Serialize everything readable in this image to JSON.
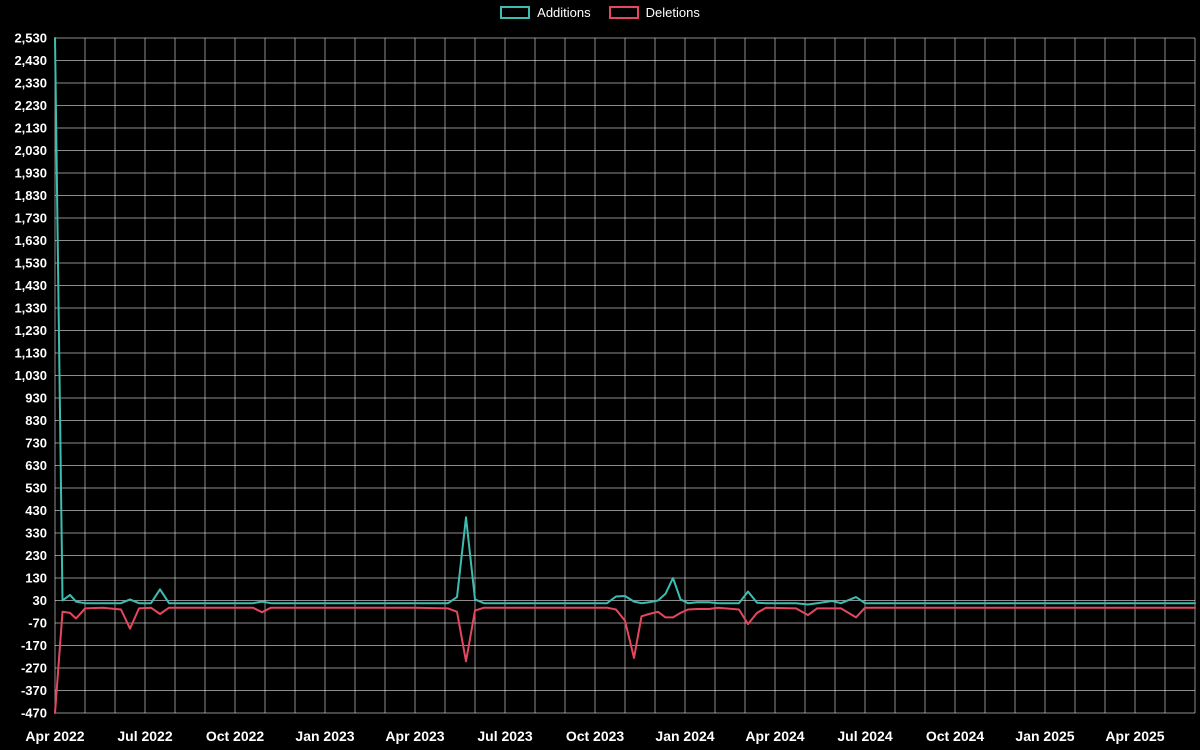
{
  "page": {
    "background_color": "#000000",
    "text_color": "#ffffff",
    "grid_color": "rgba(255,255,255,0.55)"
  },
  "legend": {
    "items": [
      {
        "label": "Additions",
        "color": "#3dbdb2"
      },
      {
        "label": "Deletions",
        "color": "#e4475f"
      }
    ]
  },
  "chart_data": {
    "type": "line",
    "title": "",
    "legend_position": "top-center",
    "grid": true,
    "background": "#000000",
    "y_axis": {
      "min": -470,
      "max": 2530,
      "tick_step": 100,
      "tick_labels": [
        "2,530",
        "2,430",
        "2,330",
        "2,230",
        "2,130",
        "2,030",
        "1,930",
        "1,830",
        "1,730",
        "1,630",
        "1,530",
        "1,430",
        "1,330",
        "1,230",
        "1,130",
        "1,030",
        "930",
        "830",
        "730",
        "630",
        "530",
        "430",
        "330",
        "230",
        "130",
        "30",
        "-70",
        "-170",
        "-270",
        "-370",
        "-470"
      ]
    },
    "x_axis": {
      "unit": "months since Apr 2022",
      "domain": [
        0,
        38
      ],
      "minor_grid_interval": 1,
      "ticks": [
        {
          "month": 0,
          "label": "Apr 2022"
        },
        {
          "month": 3,
          "label": "Jul 2022"
        },
        {
          "month": 6,
          "label": "Oct 2022"
        },
        {
          "month": 9,
          "label": "Jan 2023"
        },
        {
          "month": 12,
          "label": "Apr 2023"
        },
        {
          "month": 15,
          "label": "Jul 2023"
        },
        {
          "month": 18,
          "label": "Oct 2023"
        },
        {
          "month": 21,
          "label": "Jan 2024"
        },
        {
          "month": 24,
          "label": "Apr 2024"
        },
        {
          "month": 27,
          "label": "Jul 2024"
        },
        {
          "month": 30,
          "label": "Oct 2024"
        },
        {
          "month": 33,
          "label": "Jan 2025"
        },
        {
          "month": 36,
          "label": "Apr 2025"
        }
      ]
    },
    "series": [
      {
        "name": "Additions",
        "color": "#3dbdb2",
        "points": [
          [
            0,
            2530
          ],
          [
            0.25,
            30
          ],
          [
            0.5,
            55
          ],
          [
            0.7,
            25
          ],
          [
            1.0,
            18
          ],
          [
            1.6,
            18
          ],
          [
            2.2,
            18
          ],
          [
            2.5,
            35
          ],
          [
            2.8,
            18
          ],
          [
            3.2,
            18
          ],
          [
            3.5,
            80
          ],
          [
            3.8,
            18
          ],
          [
            4.5,
            18
          ],
          [
            6.6,
            18
          ],
          [
            6.9,
            25
          ],
          [
            7.2,
            18
          ],
          [
            9,
            18
          ],
          [
            12,
            18
          ],
          [
            13.1,
            18
          ],
          [
            13.4,
            45
          ],
          [
            13.7,
            400
          ],
          [
            14.0,
            35
          ],
          [
            14.3,
            18
          ],
          [
            15,
            18
          ],
          [
            18.4,
            18
          ],
          [
            18.7,
            48
          ],
          [
            19.0,
            50
          ],
          [
            19.3,
            25
          ],
          [
            19.55,
            18
          ],
          [
            19.8,
            22
          ],
          [
            20.1,
            30
          ],
          [
            20.35,
            60
          ],
          [
            20.6,
            130
          ],
          [
            20.85,
            35
          ],
          [
            21.1,
            18
          ],
          [
            21.4,
            22
          ],
          [
            21.8,
            22
          ],
          [
            22.1,
            18
          ],
          [
            22.8,
            18
          ],
          [
            23.1,
            70
          ],
          [
            23.4,
            20
          ],
          [
            23.7,
            18
          ],
          [
            24.7,
            18
          ],
          [
            25.1,
            12
          ],
          [
            25.4,
            18
          ],
          [
            25.9,
            28
          ],
          [
            26.2,
            18
          ],
          [
            26.7,
            45
          ],
          [
            27.0,
            18
          ],
          [
            28,
            18
          ],
          [
            38,
            18
          ]
        ]
      },
      {
        "name": "Deletions",
        "color": "#e4475f",
        "points": [
          [
            0,
            -470
          ],
          [
            0.25,
            -20
          ],
          [
            0.5,
            -25
          ],
          [
            0.7,
            -50
          ],
          [
            1.0,
            -5
          ],
          [
            1.6,
            -2
          ],
          [
            2.2,
            -10
          ],
          [
            2.5,
            -95
          ],
          [
            2.8,
            -5
          ],
          [
            3.2,
            -2
          ],
          [
            3.5,
            -30
          ],
          [
            3.8,
            -2
          ],
          [
            4.5,
            -2
          ],
          [
            6.6,
            -2
          ],
          [
            6.9,
            -22
          ],
          [
            7.2,
            -2
          ],
          [
            9,
            -2
          ],
          [
            12,
            -2
          ],
          [
            13.1,
            -5
          ],
          [
            13.4,
            -20
          ],
          [
            13.7,
            -240
          ],
          [
            14.0,
            -15
          ],
          [
            14.3,
            -2
          ],
          [
            15,
            -2
          ],
          [
            18.4,
            -2
          ],
          [
            18.7,
            -10
          ],
          [
            19.0,
            -60
          ],
          [
            19.3,
            -225
          ],
          [
            19.55,
            -40
          ],
          [
            19.8,
            -30
          ],
          [
            20.1,
            -20
          ],
          [
            20.35,
            -45
          ],
          [
            20.6,
            -45
          ],
          [
            20.85,
            -25
          ],
          [
            21.1,
            -10
          ],
          [
            21.4,
            -8
          ],
          [
            21.8,
            -8
          ],
          [
            22.1,
            -2
          ],
          [
            22.8,
            -10
          ],
          [
            23.1,
            -75
          ],
          [
            23.4,
            -25
          ],
          [
            23.7,
            -2
          ],
          [
            24.7,
            -5
          ],
          [
            25.1,
            -35
          ],
          [
            25.4,
            -5
          ],
          [
            25.9,
            -5
          ],
          [
            26.2,
            -5
          ],
          [
            26.7,
            -45
          ],
          [
            27.0,
            -2
          ],
          [
            28,
            -2
          ],
          [
            38,
            -2
          ]
        ]
      }
    ]
  }
}
